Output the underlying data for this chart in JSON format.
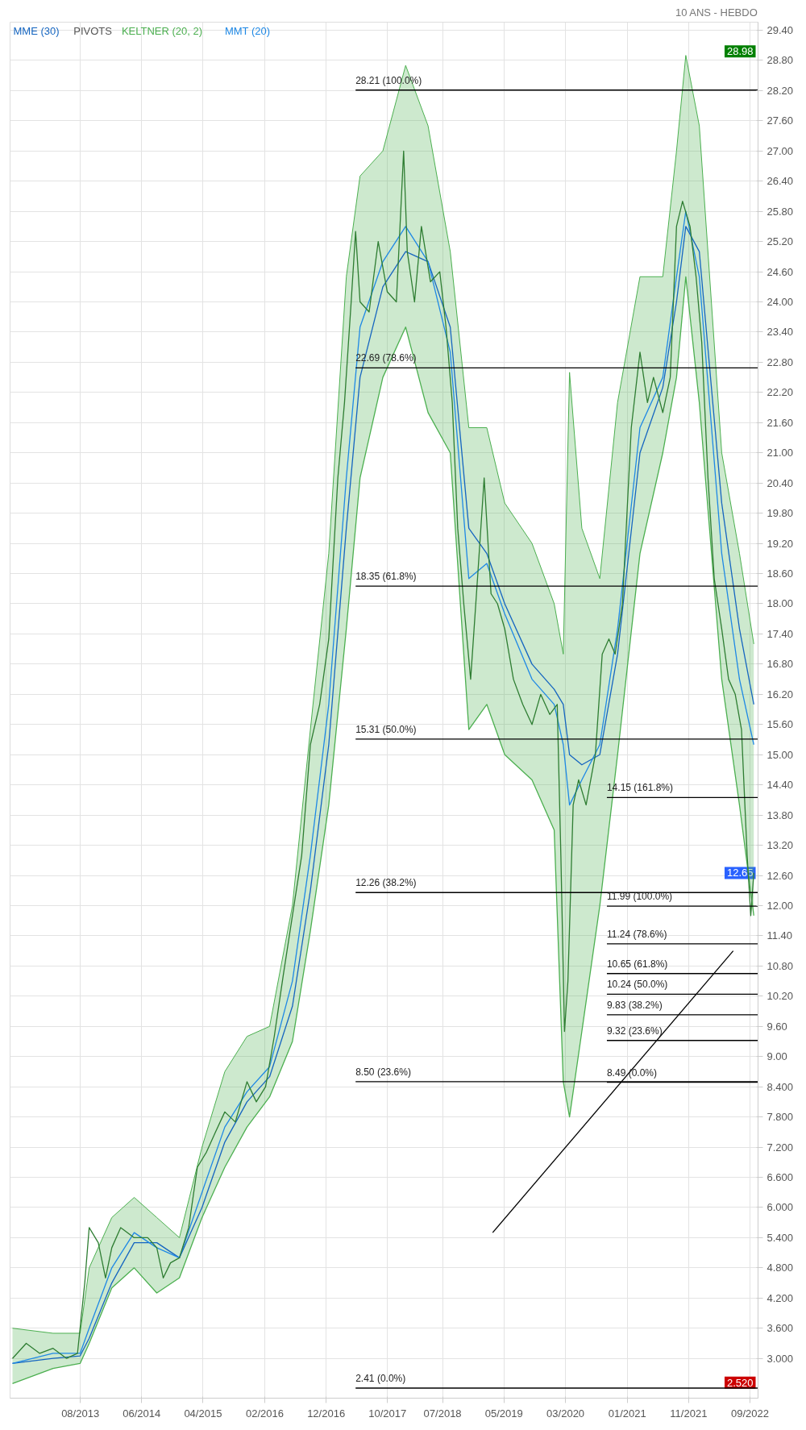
{
  "chart_data": {
    "type": "line",
    "subtitle": "10 ANS - HEBDO",
    "xlim": [
      "2012-09-01",
      "2022-10-25"
    ],
    "xticks": [
      {
        "value": "2013-08-15",
        "label": "08/2013"
      },
      {
        "value": "2014-06-15",
        "label": "06/2014"
      },
      {
        "value": "2015-04-15",
        "label": "04/2015"
      },
      {
        "value": "2016-02-15",
        "label": "02/2016"
      },
      {
        "value": "2016-12-15",
        "label": "12/2016"
      },
      {
        "value": "2017-10-15",
        "label": "10/2017"
      },
      {
        "value": "2018-07-15",
        "label": "07/2018"
      },
      {
        "value": "2019-05-15",
        "label": "05/2019"
      },
      {
        "value": "2020-03-15",
        "label": "03/2020"
      },
      {
        "value": "2021-01-15",
        "label": "01/2021"
      },
      {
        "value": "2021-11-15",
        "label": "11/2021"
      },
      {
        "value": "2022-09-15",
        "label": "09/2022"
      }
    ],
    "ylim": [
      2.21,
      29.56
    ],
    "yticks": [
      {
        "value": 3.0,
        "label": "3.000"
      },
      {
        "value": 3.6,
        "label": "3.600"
      },
      {
        "value": 4.2,
        "label": "4.200"
      },
      {
        "value": 4.8,
        "label": "4.800"
      },
      {
        "value": 5.4,
        "label": "5.400"
      },
      {
        "value": 6.0,
        "label": "6.000"
      },
      {
        "value": 6.6,
        "label": "6.600"
      },
      {
        "value": 7.2,
        "label": "7.200"
      },
      {
        "value": 7.8,
        "label": "7.800"
      },
      {
        "value": 8.4,
        "label": "8.400"
      },
      {
        "value": 9.0,
        "label": "9.00"
      },
      {
        "value": 9.6,
        "label": "9.60"
      },
      {
        "value": 10.2,
        "label": "10.20"
      },
      {
        "value": 10.8,
        "label": "10.80"
      },
      {
        "value": 11.4,
        "label": "11.40"
      },
      {
        "value": 12.0,
        "label": "12.00"
      },
      {
        "value": 12.6,
        "label": "12.60"
      },
      {
        "value": 13.2,
        "label": "13.20"
      },
      {
        "value": 13.8,
        "label": "13.80"
      },
      {
        "value": 14.4,
        "label": "14.40"
      },
      {
        "value": 15.0,
        "label": "15.00"
      },
      {
        "value": 15.6,
        "label": "15.60"
      },
      {
        "value": 16.2,
        "label": "16.20"
      },
      {
        "value": 16.8,
        "label": "16.80"
      },
      {
        "value": 17.4,
        "label": "17.40"
      },
      {
        "value": 18.0,
        "label": "18.00"
      },
      {
        "value": 18.6,
        "label": "18.60"
      },
      {
        "value": 19.2,
        "label": "19.20"
      },
      {
        "value": 19.8,
        "label": "19.80"
      },
      {
        "value": 20.4,
        "label": "20.40"
      },
      {
        "value": 21.0,
        "label": "21.00"
      },
      {
        "value": 21.6,
        "label": "21.60"
      },
      {
        "value": 22.2,
        "label": "22.20"
      },
      {
        "value": 22.8,
        "label": "22.80"
      },
      {
        "value": 23.4,
        "label": "23.40"
      },
      {
        "value": 24.0,
        "label": "24.00"
      },
      {
        "value": 24.6,
        "label": "24.60"
      },
      {
        "value": 25.2,
        "label": "25.20"
      },
      {
        "value": 25.8,
        "label": "25.80"
      },
      {
        "value": 26.4,
        "label": "26.40"
      },
      {
        "value": 27.0,
        "label": "27.00"
      },
      {
        "value": 27.6,
        "label": "27.60"
      },
      {
        "value": 28.2,
        "label": "28.20"
      },
      {
        "value": 28.8,
        "label": "28.80"
      },
      {
        "value": 29.4,
        "label": "29.40"
      }
    ],
    "grid": true,
    "legend": "top left",
    "marker": "none",
    "series": [
      {
        "name": "MME (30)",
        "color": "#1565c0",
        "x": [
          "2012-09-13",
          "2013-04-02",
          "2013-08-14",
          "2013-09-28",
          "2014-01-18",
          "2014-05-09",
          "2014-08-29",
          "2014-12-19",
          "2015-04-10",
          "2015-08-01",
          "2015-11-19",
          "2016-03-10",
          "2016-07-01",
          "2016-09-28",
          "2016-12-28",
          "2017-03-25",
          "2017-06-01",
          "2017-09-22",
          "2018-01-13",
          "2018-05-04",
          "2018-08-22",
          "2018-11-22",
          "2019-02-19",
          "2019-05-19",
          "2019-10-01",
          "2020-01-19",
          "2020-03-04",
          "2020-04-04",
          "2020-06-04",
          "2020-09-01",
          "2020-11-28",
          "2021-03-19",
          "2021-07-10",
          "2021-09-16",
          "2021-11-01",
          "2022-01-07",
          "2022-04-28",
          "2022-07-25",
          "2022-10-04"
        ],
        "values": [
          2.9,
          3.0,
          3.05,
          3.4,
          4.5,
          5.3,
          5.3,
          5.0,
          6.0,
          7.3,
          8.1,
          8.6,
          10.0,
          12.3,
          15.2,
          19.5,
          22.5,
          24.3,
          25.0,
          24.8,
          23.5,
          19.5,
          19.0,
          18.0,
          16.8,
          16.3,
          16.0,
          15.0,
          14.8,
          15.0,
          17.0,
          21.0,
          22.3,
          24.0,
          25.5,
          25.0,
          20.0,
          17.5,
          16.0
        ]
      },
      {
        "name": "KELTNER (20, 2)",
        "type": "area",
        "color": "#4caf50",
        "x": [
          "2012-09-13",
          "2013-04-02",
          "2013-08-14",
          "2013-09-28",
          "2014-01-18",
          "2014-05-09",
          "2014-08-29",
          "2014-12-19",
          "2015-04-10",
          "2015-08-01",
          "2015-11-19",
          "2016-03-10",
          "2016-07-01",
          "2016-09-28",
          "2016-12-28",
          "2017-03-25",
          "2017-06-01",
          "2017-09-22",
          "2018-01-13",
          "2018-05-04",
          "2018-08-22",
          "2018-11-22",
          "2019-02-19",
          "2019-05-19",
          "2019-10-01",
          "2020-01-19",
          "2020-03-04",
          "2020-04-04",
          "2020-06-04",
          "2020-09-01",
          "2020-11-28",
          "2021-03-19",
          "2021-07-10",
          "2021-09-16",
          "2021-11-01",
          "2022-01-07",
          "2022-04-28",
          "2022-07-25",
          "2022-10-04"
        ],
        "values": [
          3.6,
          3.5,
          3.5,
          4.8,
          5.8,
          6.2,
          5.8,
          5.4,
          7.2,
          8.7,
          9.4,
          9.6,
          12.0,
          15.5,
          19.0,
          24.5,
          26.5,
          27.0,
          28.7,
          27.5,
          25.0,
          21.5,
          21.5,
          20.0,
          19.2,
          18.0,
          17.0,
          22.6,
          19.5,
          18.5,
          22.0,
          24.5,
          24.5,
          27.0,
          28.9,
          27.5,
          21.0,
          19.0,
          17.2
        ]
      },
      {
        "type": "line",
        "color": "#4caf50",
        "x": [
          "2012-09-13",
          "2013-04-02",
          "2013-08-14",
          "2013-09-28",
          "2014-01-18",
          "2014-05-09",
          "2014-08-29",
          "2014-12-19",
          "2015-04-10",
          "2015-08-01",
          "2015-11-19",
          "2016-03-10",
          "2016-07-01",
          "2016-09-28",
          "2016-12-28",
          "2017-03-25",
          "2017-06-01",
          "2017-09-22",
          "2018-01-13",
          "2018-05-04",
          "2018-08-22",
          "2018-11-22",
          "2019-02-19",
          "2019-05-19",
          "2019-10-01",
          "2020-01-19",
          "2020-03-04",
          "2020-04-04",
          "2020-06-04",
          "2020-09-01",
          "2020-11-28",
          "2021-03-19",
          "2021-07-10",
          "2021-09-16",
          "2021-11-01",
          "2022-01-07",
          "2022-04-28",
          "2022-07-25",
          "2022-10-04"
        ],
        "values": [
          2.5,
          2.8,
          2.9,
          3.3,
          4.4,
          4.8,
          4.3,
          4.6,
          5.8,
          6.8,
          7.6,
          8.2,
          9.3,
          11.5,
          14.0,
          17.5,
          20.5,
          22.5,
          23.5,
          21.8,
          21.0,
          15.5,
          16.0,
          15.0,
          14.5,
          13.5,
          8.5,
          7.8,
          9.5,
          12.0,
          15.0,
          19.0,
          21.0,
          22.5,
          24.5,
          22.0,
          16.5,
          14.0,
          11.8
        ]
      },
      {
        "name": "MMT (20)",
        "color": "#1e88e5",
        "x": [
          "2012-09-13",
          "2013-04-02",
          "2013-08-14",
          "2013-09-28",
          "2014-01-18",
          "2014-05-09",
          "2014-08-29",
          "2014-12-19",
          "2015-04-10",
          "2015-08-01",
          "2015-11-19",
          "2016-03-10",
          "2016-07-01",
          "2016-09-28",
          "2016-12-28",
          "2017-03-25",
          "2017-06-01",
          "2017-09-22",
          "2018-01-13",
          "2018-05-04",
          "2018-08-22",
          "2018-11-22",
          "2019-02-19",
          "2019-05-19",
          "2019-10-01",
          "2020-01-19",
          "2020-03-04",
          "2020-04-04",
          "2020-06-04",
          "2020-09-01",
          "2020-11-28",
          "2021-03-19",
          "2021-07-10",
          "2021-09-16",
          "2021-11-01",
          "2022-01-07",
          "2022-04-28",
          "2022-07-25",
          "2022-10-04"
        ],
        "values": [
          2.9,
          3.1,
          3.1,
          3.6,
          4.8,
          5.5,
          5.2,
          5.0,
          6.3,
          7.6,
          8.3,
          8.8,
          10.5,
          13.0,
          16.0,
          20.5,
          23.5,
          24.8,
          25.5,
          24.8,
          23.0,
          18.5,
          18.8,
          17.8,
          16.5,
          16.0,
          15.2,
          14.0,
          14.5,
          15.2,
          17.5,
          21.5,
          22.5,
          24.5,
          25.8,
          24.5,
          19.0,
          16.5,
          15.2
        ]
      },
      {
        "color": "#2e7d32",
        "x": [
          "2012-09-13",
          "2012-11-20",
          "2013-01-26",
          "2013-04-02",
          "2013-06-08",
          "2013-08-01",
          "2013-09-06",
          "2013-09-28",
          "2013-11-12",
          "2013-12-18",
          "2014-01-18",
          "2014-03-03",
          "2014-05-09",
          "2014-07-15",
          "2014-08-29",
          "2014-09-30",
          "2014-11-05",
          "2014-12-19",
          "2015-02-03",
          "2015-03-18",
          "2015-05-02",
          "2015-06-16",
          "2015-08-01",
          "2015-09-22",
          "2015-11-19",
          "2016-01-04",
          "2016-02-19",
          "2016-04-02",
          "2016-05-16",
          "2016-07-01",
          "2016-08-16",
          "2016-09-28",
          "2016-11-13",
          "2016-12-28",
          "2017-02-11",
          "2017-03-16",
          "2017-04-18",
          "2017-05-10",
          "2017-06-01",
          "2017-07-16",
          "2017-08-30",
          "2017-10-14",
          "2017-11-28",
          "2018-01-03",
          "2018-01-21",
          "2018-02-26",
          "2018-04-01",
          "2018-05-16",
          "2018-07-01",
          "2018-08-01",
          "2018-09-01",
          "2018-09-28",
          "2018-10-28",
          "2018-12-01",
          "2019-01-04",
          "2019-02-06",
          "2019-03-12",
          "2019-04-13",
          "2019-05-19",
          "2019-07-01",
          "2019-08-16",
          "2019-10-01",
          "2019-11-13",
          "2019-12-28",
          "2020-02-03",
          "2020-02-21",
          "2020-03-10",
          "2020-03-27",
          "2020-04-22",
          "2020-05-19",
          "2020-06-25",
          "2020-08-10",
          "2020-09-13",
          "2020-10-16",
          "2020-11-16",
          "2020-12-22",
          "2021-02-04",
          "2021-03-19",
          "2021-04-25",
          "2021-05-25",
          "2021-07-10",
          "2021-08-16",
          "2021-09-16",
          "2021-10-16",
          "2021-11-22",
          "2021-12-22",
          "2022-01-19",
          "2022-02-19",
          "2022-03-22",
          "2022-04-28",
          "2022-06-01",
          "2022-07-04",
          "2022-08-04",
          "2022-09-01",
          "2022-09-19",
          "2022-10-04"
        ],
        "values": [
          3.0,
          3.3,
          3.1,
          3.2,
          3.0,
          3.1,
          4.5,
          5.6,
          5.3,
          4.6,
          5.2,
          5.6,
          5.4,
          5.4,
          5.2,
          4.6,
          4.9,
          5.0,
          5.6,
          6.8,
          7.1,
          7.5,
          7.9,
          7.7,
          8.5,
          8.1,
          8.4,
          9.4,
          10.6,
          11.8,
          13.0,
          15.2,
          16.0,
          17.3,
          20.5,
          22.0,
          24.0,
          25.4,
          24.0,
          23.8,
          25.2,
          24.2,
          24.0,
          27.0,
          25.0,
          24.0,
          25.5,
          24.4,
          24.6,
          23.5,
          22.0,
          19.5,
          18.0,
          16.5,
          18.5,
          20.5,
          18.2,
          18.0,
          17.5,
          16.5,
          16.0,
          15.6,
          16.2,
          15.8,
          16.0,
          13.0,
          9.5,
          10.5,
          14.0,
          14.5,
          14.0,
          15.0,
          17.0,
          17.3,
          17.0,
          18.0,
          21.5,
          23.0,
          22.0,
          22.5,
          21.8,
          22.5,
          25.5,
          26.0,
          25.5,
          24.5,
          23.2,
          20.5,
          18.5,
          17.5,
          16.5,
          16.2,
          15.5,
          13.0,
          11.8,
          12.65
        ]
      },
      {
        "color": "#000000",
        "x": [
          "2019-03-20",
          "2022-06-24"
        ],
        "values": [
          5.5,
          11.1
        ]
      },
      {
        "color": "#000000",
        "x": [
          "2017-05-10",
          "2022-10-25"
        ],
        "values": [
          28.21,
          28.21
        ]
      },
      {
        "color": "#000000",
        "x": [
          "2017-05-10",
          "2022-10-25"
        ],
        "values": [
          22.69,
          22.69
        ]
      },
      {
        "color": "#000000",
        "x": [
          "2017-05-10",
          "2022-10-25"
        ],
        "values": [
          18.35,
          18.35
        ]
      },
      {
        "color": "#000000",
        "x": [
          "2017-05-10",
          "2022-10-25"
        ],
        "values": [
          15.31,
          15.31
        ]
      },
      {
        "color": "#000000",
        "x": [
          "2017-05-10",
          "2022-10-25"
        ],
        "values": [
          12.26,
          12.26
        ]
      },
      {
        "color": "#000000",
        "x": [
          "2017-05-10",
          "2022-10-25"
        ],
        "values": [
          8.5,
          8.5
        ]
      },
      {
        "color": "#000000",
        "x": [
          "2017-05-10",
          "2022-10-25"
        ],
        "values": [
          2.41,
          2.41
        ]
      },
      {
        "color": "#000000",
        "x": [
          "2020-10-06",
          "2022-10-25"
        ],
        "values": [
          14.15,
          14.15
        ]
      },
      {
        "color": "#000000",
        "x": [
          "2020-10-06",
          "2022-10-25"
        ],
        "values": [
          11.99,
          11.99
        ]
      },
      {
        "color": "#000000",
        "x": [
          "2020-10-06",
          "2022-10-25"
        ],
        "values": [
          11.24,
          11.24
        ]
      },
      {
        "color": "#000000",
        "x": [
          "2020-10-06",
          "2022-10-25"
        ],
        "values": [
          10.65,
          10.65
        ]
      },
      {
        "color": "#000000",
        "x": [
          "2020-10-06",
          "2022-10-25"
        ],
        "values": [
          10.24,
          10.24
        ]
      },
      {
        "color": "#000000",
        "x": [
          "2020-10-06",
          "2022-10-25"
        ],
        "values": [
          9.83,
          9.83
        ]
      },
      {
        "color": "#000000",
        "x": [
          "2020-10-06",
          "2022-10-25"
        ],
        "values": [
          9.32,
          9.32
        ]
      },
      {
        "color": "#000000",
        "x": [
          "2020-10-06",
          "2022-10-25"
        ],
        "values": [
          8.49,
          8.49
        ]
      }
    ],
    "annotations": [
      "PIVOTS",
      {
        "text": "28.21 (100.0%)",
        "x": "2017-05-10",
        "y": 28.21
      },
      {
        "text": "22.69 (78.6%)",
        "x": "2017-05-10",
        "y": 22.69
      },
      {
        "text": "18.35 (61.8%)",
        "x": "2017-05-10",
        "y": 18.35
      },
      {
        "text": "15.31 (50.0%)",
        "x": "2017-05-10",
        "y": 15.31
      },
      {
        "text": "12.26 (38.2%)",
        "x": "2017-05-10",
        "y": 12.26
      },
      {
        "text": "8.50 (23.6%)",
        "x": "2017-05-10",
        "y": 8.5
      },
      {
        "text": "2.41 (0.0%)",
        "x": "2017-05-10",
        "y": 2.41
      },
      {
        "text": "14.15 (161.8%)",
        "x": "2020-10-06",
        "y": 14.15
      },
      {
        "text": "11.99 (100.0%)",
        "x": "2020-10-06",
        "y": 11.99
      },
      {
        "text": "11.24 (78.6%)",
        "x": "2020-10-06",
        "y": 11.24
      },
      {
        "text": "10.65 (61.8%)",
        "x": "2020-10-06",
        "y": 10.65
      },
      {
        "text": "10.24 (50.0%)",
        "x": "2020-10-06",
        "y": 10.24
      },
      {
        "text": "9.83 (38.2%)",
        "x": "2020-10-06",
        "y": 9.83
      },
      {
        "text": "9.32 (23.6%)",
        "x": "2020-10-06",
        "y": 9.32
      },
      {
        "text": "8.49 (0.0%)",
        "x": "2020-10-06",
        "y": 8.49
      },
      {
        "text": "28.98",
        "y": 28.98
      },
      {
        "text": "12.65",
        "y": 12.65
      },
      {
        "text": "2.520",
        "y": 2.52
      }
    ]
  }
}
